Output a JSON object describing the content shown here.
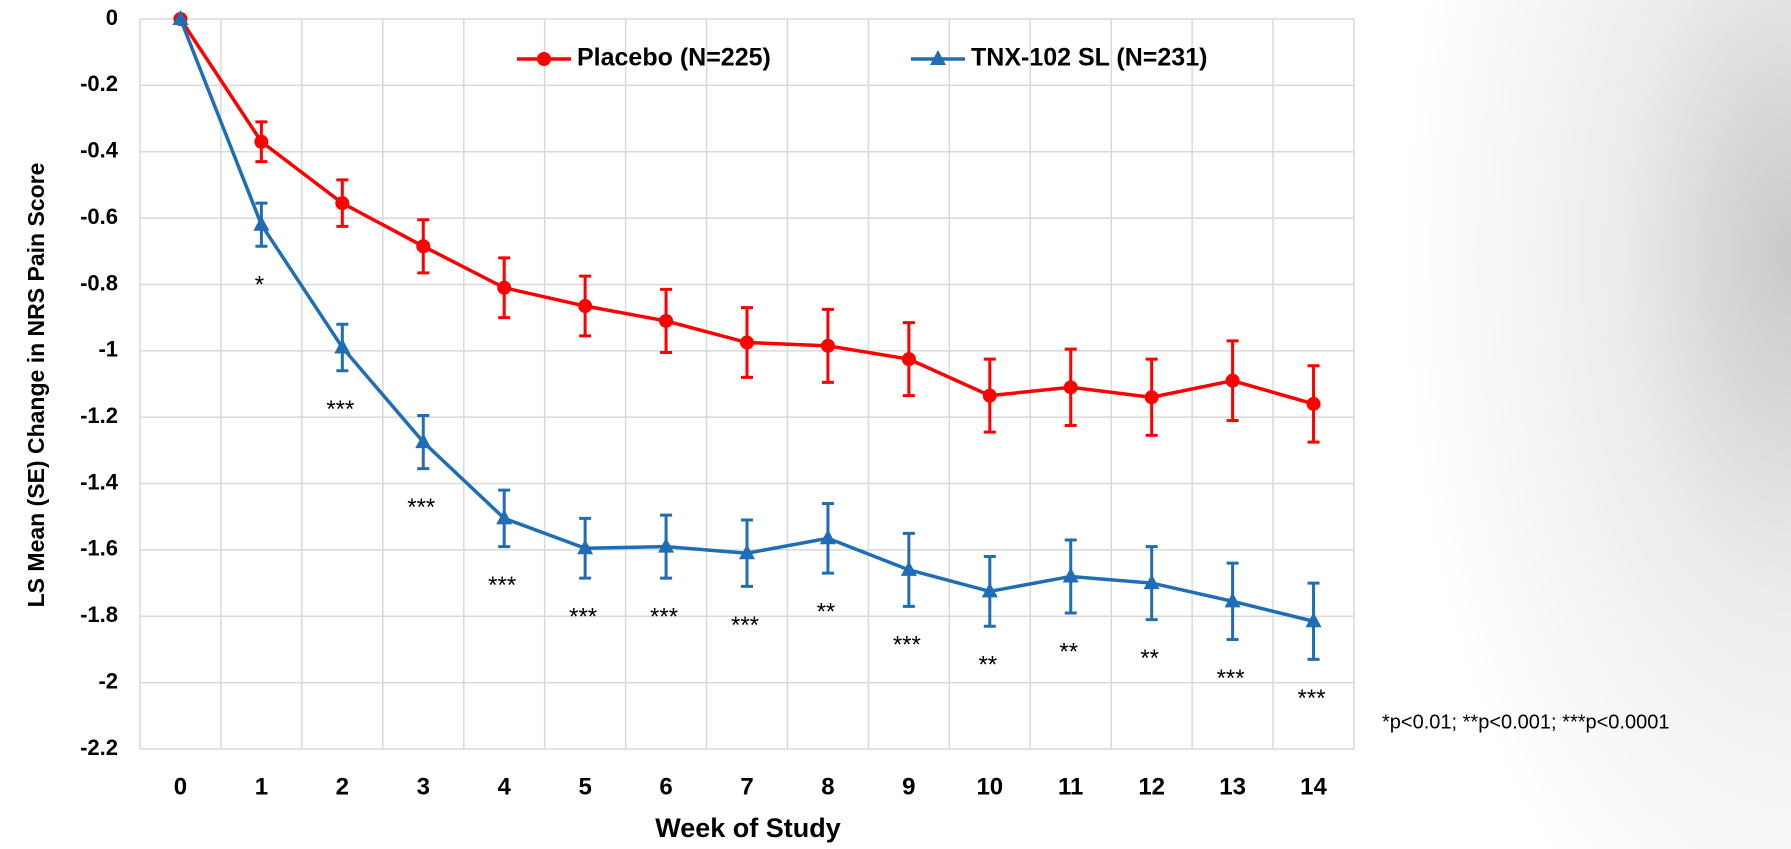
{
  "chart_data": {
    "type": "line",
    "y_label": "LS Mean (SE) Change in NRS Pain Score",
    "x_label": "Week of Study",
    "categories": [
      "0",
      "1",
      "2",
      "3",
      "4",
      "5",
      "6",
      "7",
      "8",
      "9",
      "10",
      "11",
      "12",
      "13",
      "14"
    ],
    "series": [
      {
        "name": "Placebo (N=225)",
        "color": "#ff0000",
        "marker": "circle",
        "values": [
          0,
          -0.37,
          -0.555,
          -0.685,
          -0.81,
          -0.865,
          -0.91,
          -0.975,
          -0.985,
          -1.025,
          -1.135,
          -1.11,
          -1.14,
          -1.09,
          -1.16
        ],
        "errors": [
          0,
          0.06,
          0.07,
          0.08,
          0.09,
          0.09,
          0.095,
          0.105,
          0.11,
          0.11,
          0.11,
          0.115,
          0.115,
          0.12,
          0.115
        ]
      },
      {
        "name": "TNX-102 SL (N=231)",
        "color": "#1f6db5",
        "marker": "triangle",
        "values": [
          0,
          -0.62,
          -0.99,
          -1.275,
          -1.505,
          -1.595,
          -1.59,
          -1.61,
          -1.565,
          -1.66,
          -1.725,
          -1.68,
          -1.7,
          -1.755,
          -1.815
        ],
        "errors": [
          0,
          0.065,
          0.07,
          0.08,
          0.085,
          0.09,
          0.095,
          0.1,
          0.105,
          0.11,
          0.105,
          0.11,
          0.11,
          0.115,
          0.115
        ]
      }
    ],
    "significance": [
      null,
      "*",
      "***",
      "***",
      "***",
      "***",
      "***",
      "***",
      "**",
      "***",
      "**",
      "**",
      "**",
      "***",
      "***"
    ],
    "footnote": "*p<0.01; **p<0.001; ***p<0.0001",
    "ylim": [
      -2.2,
      0
    ],
    "yticks": [
      0,
      -0.2,
      -0.4,
      -0.6,
      -0.8,
      -1,
      -1.2,
      -1.4,
      -1.6,
      -1.8,
      -2,
      -2.2
    ],
    "grid": true,
    "legend_position": "top"
  }
}
